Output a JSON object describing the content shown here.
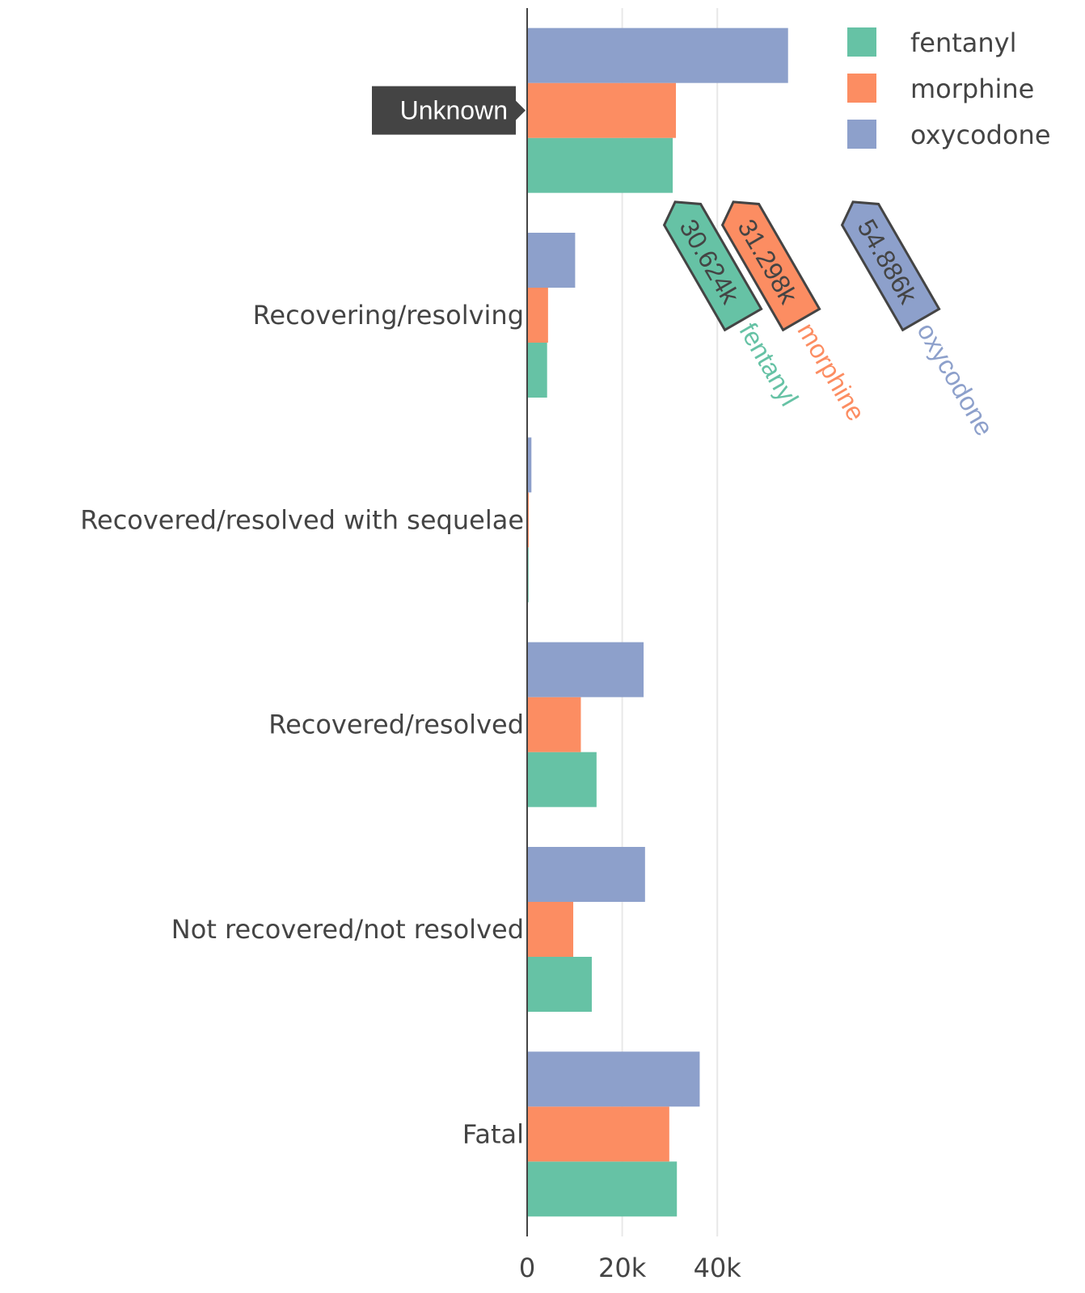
{
  "chart_data": {
    "type": "bar",
    "orientation": "horizontal",
    "categories": [
      "Fatal",
      "Not recovered/not resolved",
      "Recovered/resolved",
      "Recovered/resolved with sequelae",
      "Recovering/resolving",
      "Unknown"
    ],
    "series": [
      {
        "name": "fentanyl",
        "color": "#66c2a5",
        "values": [
          31500,
          13600,
          14600,
          300,
          4200,
          30624
        ]
      },
      {
        "name": "morphine",
        "color": "#fc8d62",
        "values": [
          29900,
          9700,
          11300,
          350,
          4400,
          31298
        ]
      },
      {
        "name": "oxycodone",
        "color": "#8da0cb",
        "values": [
          36300,
          24800,
          24500,
          900,
          10100,
          54886
        ]
      }
    ],
    "xlim": [
      0,
      60000
    ],
    "xticks": [
      {
        "value": 0,
        "label": "0"
      },
      {
        "value": 20000,
        "label": "20k"
      },
      {
        "value": 40000,
        "label": "40k"
      }
    ],
    "grid": true,
    "legend_position": "top-right",
    "hover": {
      "category_label": "Unknown",
      "labels": [
        {
          "series": "fentanyl",
          "text": "30.624k"
        },
        {
          "series": "morphine",
          "text": "31.298k"
        },
        {
          "series": "oxycodone",
          "text": "54.886k"
        }
      ]
    }
  }
}
